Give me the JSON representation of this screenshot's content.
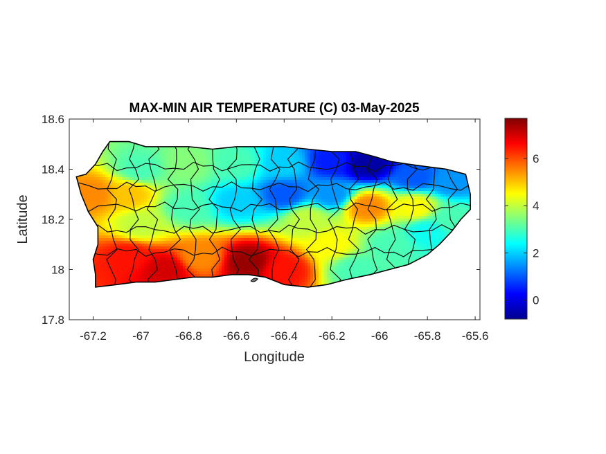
{
  "chart_data": {
    "type": "heatmap",
    "title": "MAX-MIN AIR TEMPERATURE (C) 03-May-2025",
    "xlabel": "Longitude",
    "ylabel": "Latitude",
    "xlim": [
      -67.3,
      -65.58
    ],
    "ylim": [
      17.8,
      18.6
    ],
    "x_ticks": [
      -67.2,
      -67,
      -66.8,
      -66.6,
      -66.4,
      -66.2,
      -66,
      -65.8,
      -65.6
    ],
    "x_tick_labels": [
      "-67.2",
      "-67",
      "-66.8",
      "-66.6",
      "-66.4",
      "-66.2",
      "-66",
      "-65.8",
      "-65.6"
    ],
    "y_ticks": [
      17.8,
      18,
      18.2,
      18.4,
      18.6
    ],
    "y_tick_labels": [
      "17.8",
      "18",
      "18.2",
      "18.4",
      "18.6"
    ],
    "colorbar": {
      "range": [
        -0.8,
        7.7
      ],
      "ticks": [
        0,
        2,
        4,
        6
      ],
      "tick_labels": [
        "0",
        "2",
        "4",
        "6"
      ],
      "colormap": "jet"
    },
    "grid": false,
    "field_points": [
      {
        "lon": -67.2,
        "lat": 18.3,
        "value": 5.5
      },
      {
        "lon": -67.05,
        "lat": 18.3,
        "value": 5.0
      },
      {
        "lon": -67.0,
        "lat": 18.4,
        "value": 3.0
      },
      {
        "lon": -66.8,
        "lat": 18.42,
        "value": 3.5
      },
      {
        "lon": -66.6,
        "lat": 18.42,
        "value": 3.0
      },
      {
        "lon": -66.4,
        "lat": 18.42,
        "value": 2.0
      },
      {
        "lon": -66.2,
        "lat": 18.43,
        "value": 0.5
      },
      {
        "lon": -66.05,
        "lat": 18.42,
        "value": -0.5
      },
      {
        "lon": -65.85,
        "lat": 18.37,
        "value": 1.0
      },
      {
        "lon": -65.7,
        "lat": 18.35,
        "value": 1.5
      },
      {
        "lon": -67.0,
        "lat": 18.18,
        "value": 4.0
      },
      {
        "lon": -66.8,
        "lat": 18.25,
        "value": 3.0
      },
      {
        "lon": -66.6,
        "lat": 18.27,
        "value": 2.0
      },
      {
        "lon": -66.4,
        "lat": 18.3,
        "value": 1.0
      },
      {
        "lon": -66.2,
        "lat": 18.3,
        "value": 1.5
      },
      {
        "lon": -66.05,
        "lat": 18.25,
        "value": 5.5
      },
      {
        "lon": -65.85,
        "lat": 18.25,
        "value": 4.5
      },
      {
        "lon": -65.7,
        "lat": 18.2,
        "value": 3.0
      },
      {
        "lon": -67.05,
        "lat": 18.05,
        "value": 6.5
      },
      {
        "lon": -66.9,
        "lat": 18.0,
        "value": 7.0
      },
      {
        "lon": -66.75,
        "lat": 18.05,
        "value": 5.5
      },
      {
        "lon": -66.55,
        "lat": 18.03,
        "value": 7.5
      },
      {
        "lon": -66.4,
        "lat": 18.0,
        "value": 6.5
      },
      {
        "lon": -66.2,
        "lat": 18.1,
        "value": 4.5
      },
      {
        "lon": -66.1,
        "lat": 18.0,
        "value": 3.0
      },
      {
        "lon": -65.95,
        "lat": 18.1,
        "value": 3.0
      },
      {
        "lon": -65.8,
        "lat": 18.15,
        "value": 2.5
      },
      {
        "lon": -66.3,
        "lat": 18.2,
        "value": 4.0
      }
    ]
  }
}
